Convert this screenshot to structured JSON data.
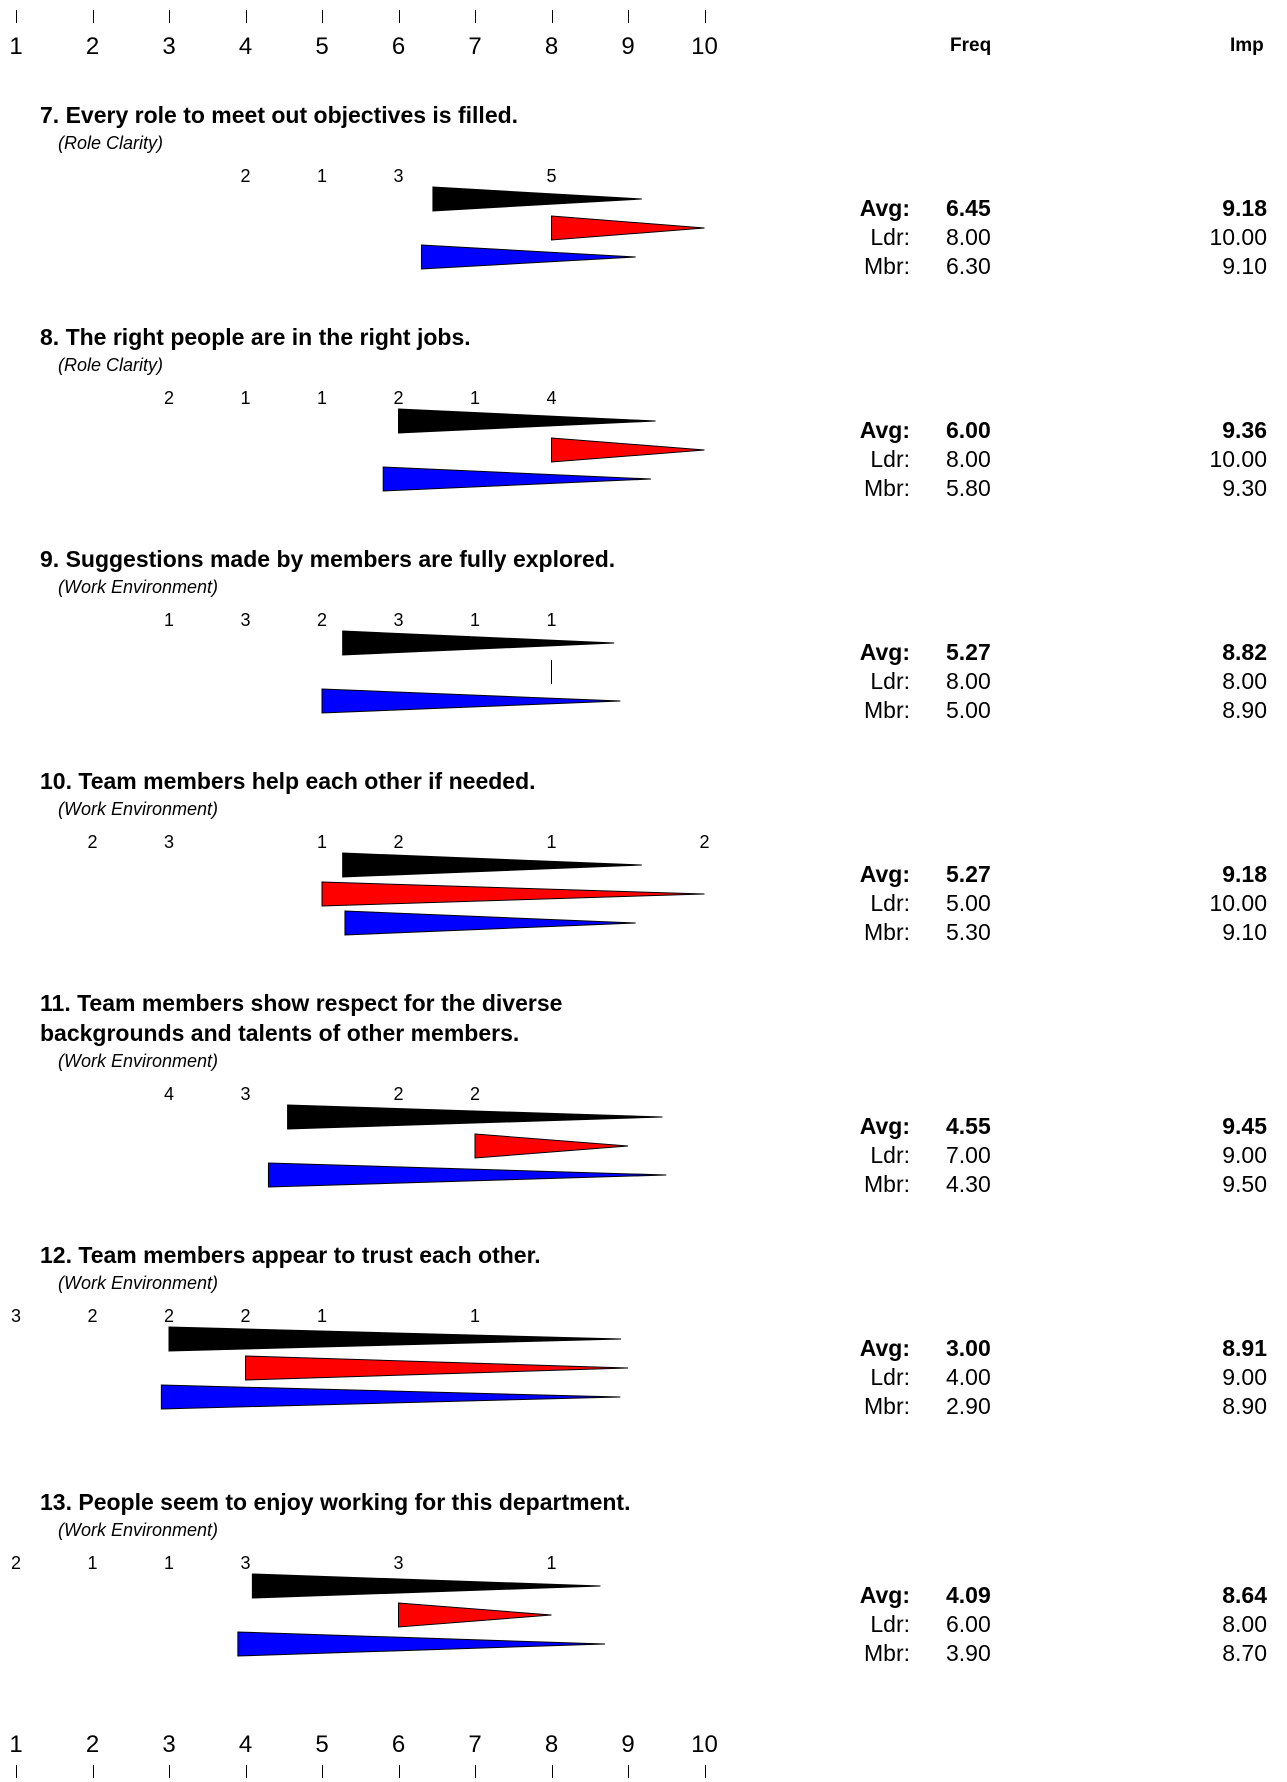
{
  "header": {
    "partial_text": "",
    "freq_label": "Freq",
    "imp_label": "Imp"
  },
  "scale": {
    "labels": [
      "1",
      "2",
      "3",
      "4",
      "5",
      "6",
      "7",
      "8",
      "9",
      "10"
    ]
  },
  "colors": {
    "avg": "#000000",
    "leader": "#ff0000",
    "member": "#0000ff"
  },
  "chart_data": {
    "type": "wedge",
    "x_range": [
      1,
      10
    ],
    "series_names": [
      "Avg",
      "Ldr",
      "Mbr"
    ],
    "items": [
      {
        "title": "7. Every role to meet out objectives is filled.",
        "category": "(Role Clarity)",
        "counts": [
          {
            "score": 4,
            "n": "2"
          },
          {
            "score": 5,
            "n": "1"
          },
          {
            "score": 6,
            "n": "3"
          },
          {
            "score": 8,
            "n": "5"
          }
        ],
        "avg": {
          "freq": 6.45,
          "imp": 9.18,
          "freq_text": "6.45",
          "imp_text": "9.18"
        },
        "ldr": {
          "freq": 8.0,
          "imp": 10.0,
          "freq_text": "8.00",
          "imp_text": "10.00"
        },
        "mbr": {
          "freq": 6.3,
          "imp": 9.1,
          "freq_text": "6.30",
          "imp_text": "9.10"
        }
      },
      {
        "title": "8. The right people are in the right jobs.",
        "category": "(Role Clarity)",
        "counts": [
          {
            "score": 3,
            "n": "2"
          },
          {
            "score": 4,
            "n": "1"
          },
          {
            "score": 5,
            "n": "1"
          },
          {
            "score": 6,
            "n": "2"
          },
          {
            "score": 7,
            "n": "1"
          },
          {
            "score": 8,
            "n": "4"
          }
        ],
        "avg": {
          "freq": 6.0,
          "imp": 9.36,
          "freq_text": "6.00",
          "imp_text": "9.36"
        },
        "ldr": {
          "freq": 8.0,
          "imp": 10.0,
          "freq_text": "8.00",
          "imp_text": "10.00"
        },
        "mbr": {
          "freq": 5.8,
          "imp": 9.3,
          "freq_text": "5.80",
          "imp_text": "9.30"
        }
      },
      {
        "title": "9. Suggestions made by members are fully explored.",
        "category": "(Work Environment)",
        "counts": [
          {
            "score": 3,
            "n": "1"
          },
          {
            "score": 4,
            "n": "3"
          },
          {
            "score": 5,
            "n": "2"
          },
          {
            "score": 6,
            "n": "3"
          },
          {
            "score": 7,
            "n": "1"
          },
          {
            "score": 8,
            "n": "1"
          }
        ],
        "avg": {
          "freq": 5.27,
          "imp": 8.82,
          "freq_text": "5.27",
          "imp_text": "8.82"
        },
        "ldr": {
          "freq": 8.0,
          "imp": 8.0,
          "freq_text": "8.00",
          "imp_text": "8.00"
        },
        "mbr": {
          "freq": 5.0,
          "imp": 8.9,
          "freq_text": "5.00",
          "imp_text": "8.90"
        }
      },
      {
        "title": "10. Team members help each other if needed.",
        "category": "(Work Environment)",
        "counts": [
          {
            "score": 2,
            "n": "2"
          },
          {
            "score": 3,
            "n": "3"
          },
          {
            "score": 5,
            "n": "1"
          },
          {
            "score": 6,
            "n": "2"
          },
          {
            "score": 8,
            "n": "1"
          },
          {
            "score": 10,
            "n": "2"
          }
        ],
        "avg": {
          "freq": 5.27,
          "imp": 9.18,
          "freq_text": "5.27",
          "imp_text": "9.18"
        },
        "ldr": {
          "freq": 5.0,
          "imp": 10.0,
          "freq_text": "5.00",
          "imp_text": "10.00"
        },
        "mbr": {
          "freq": 5.3,
          "imp": 9.1,
          "freq_text": "5.30",
          "imp_text": "9.10"
        }
      },
      {
        "title": "11. Team members show respect for the diverse backgrounds and talents of other members.",
        "category": "(Work Environment)",
        "counts": [
          {
            "score": 3,
            "n": "4"
          },
          {
            "score": 4,
            "n": "3"
          },
          {
            "score": 6,
            "n": "2"
          },
          {
            "score": 7,
            "n": "2"
          }
        ],
        "avg": {
          "freq": 4.55,
          "imp": 9.45,
          "freq_text": "4.55",
          "imp_text": "9.45"
        },
        "ldr": {
          "freq": 7.0,
          "imp": 9.0,
          "freq_text": "7.00",
          "imp_text": "9.00"
        },
        "mbr": {
          "freq": 4.3,
          "imp": 9.5,
          "freq_text": "4.30",
          "imp_text": "9.50"
        }
      },
      {
        "title": "12. Team members appear to trust each other.",
        "category": "(Work Environment)",
        "counts": [
          {
            "score": 1,
            "n": "3"
          },
          {
            "score": 2,
            "n": "2"
          },
          {
            "score": 3,
            "n": "2"
          },
          {
            "score": 4,
            "n": "2"
          },
          {
            "score": 5,
            "n": "1"
          },
          {
            "score": 7,
            "n": "1"
          }
        ],
        "avg": {
          "freq": 3.0,
          "imp": 8.91,
          "freq_text": "3.00",
          "imp_text": "8.91"
        },
        "ldr": {
          "freq": 4.0,
          "imp": 9.0,
          "freq_text": "4.00",
          "imp_text": "9.00"
        },
        "mbr": {
          "freq": 2.9,
          "imp": 8.9,
          "freq_text": "2.90",
          "imp_text": "8.90"
        }
      },
      {
        "title": "13. People seem to enjoy working for this department.",
        "category": "(Work Environment)",
        "counts": [
          {
            "score": 1,
            "n": "2"
          },
          {
            "score": 2,
            "n": "1"
          },
          {
            "score": 3,
            "n": "1"
          },
          {
            "score": 4,
            "n": "3"
          },
          {
            "score": 6,
            "n": "3"
          },
          {
            "score": 8,
            "n": "1"
          }
        ],
        "avg": {
          "freq": 4.09,
          "imp": 8.64,
          "freq_text": "4.09",
          "imp_text": "8.64"
        },
        "ldr": {
          "freq": 6.0,
          "imp": 8.0,
          "freq_text": "6.00",
          "imp_text": "8.00"
        },
        "mbr": {
          "freq": 3.9,
          "imp": 8.7,
          "freq_text": "3.90",
          "imp_text": "8.70"
        }
      }
    ]
  }
}
